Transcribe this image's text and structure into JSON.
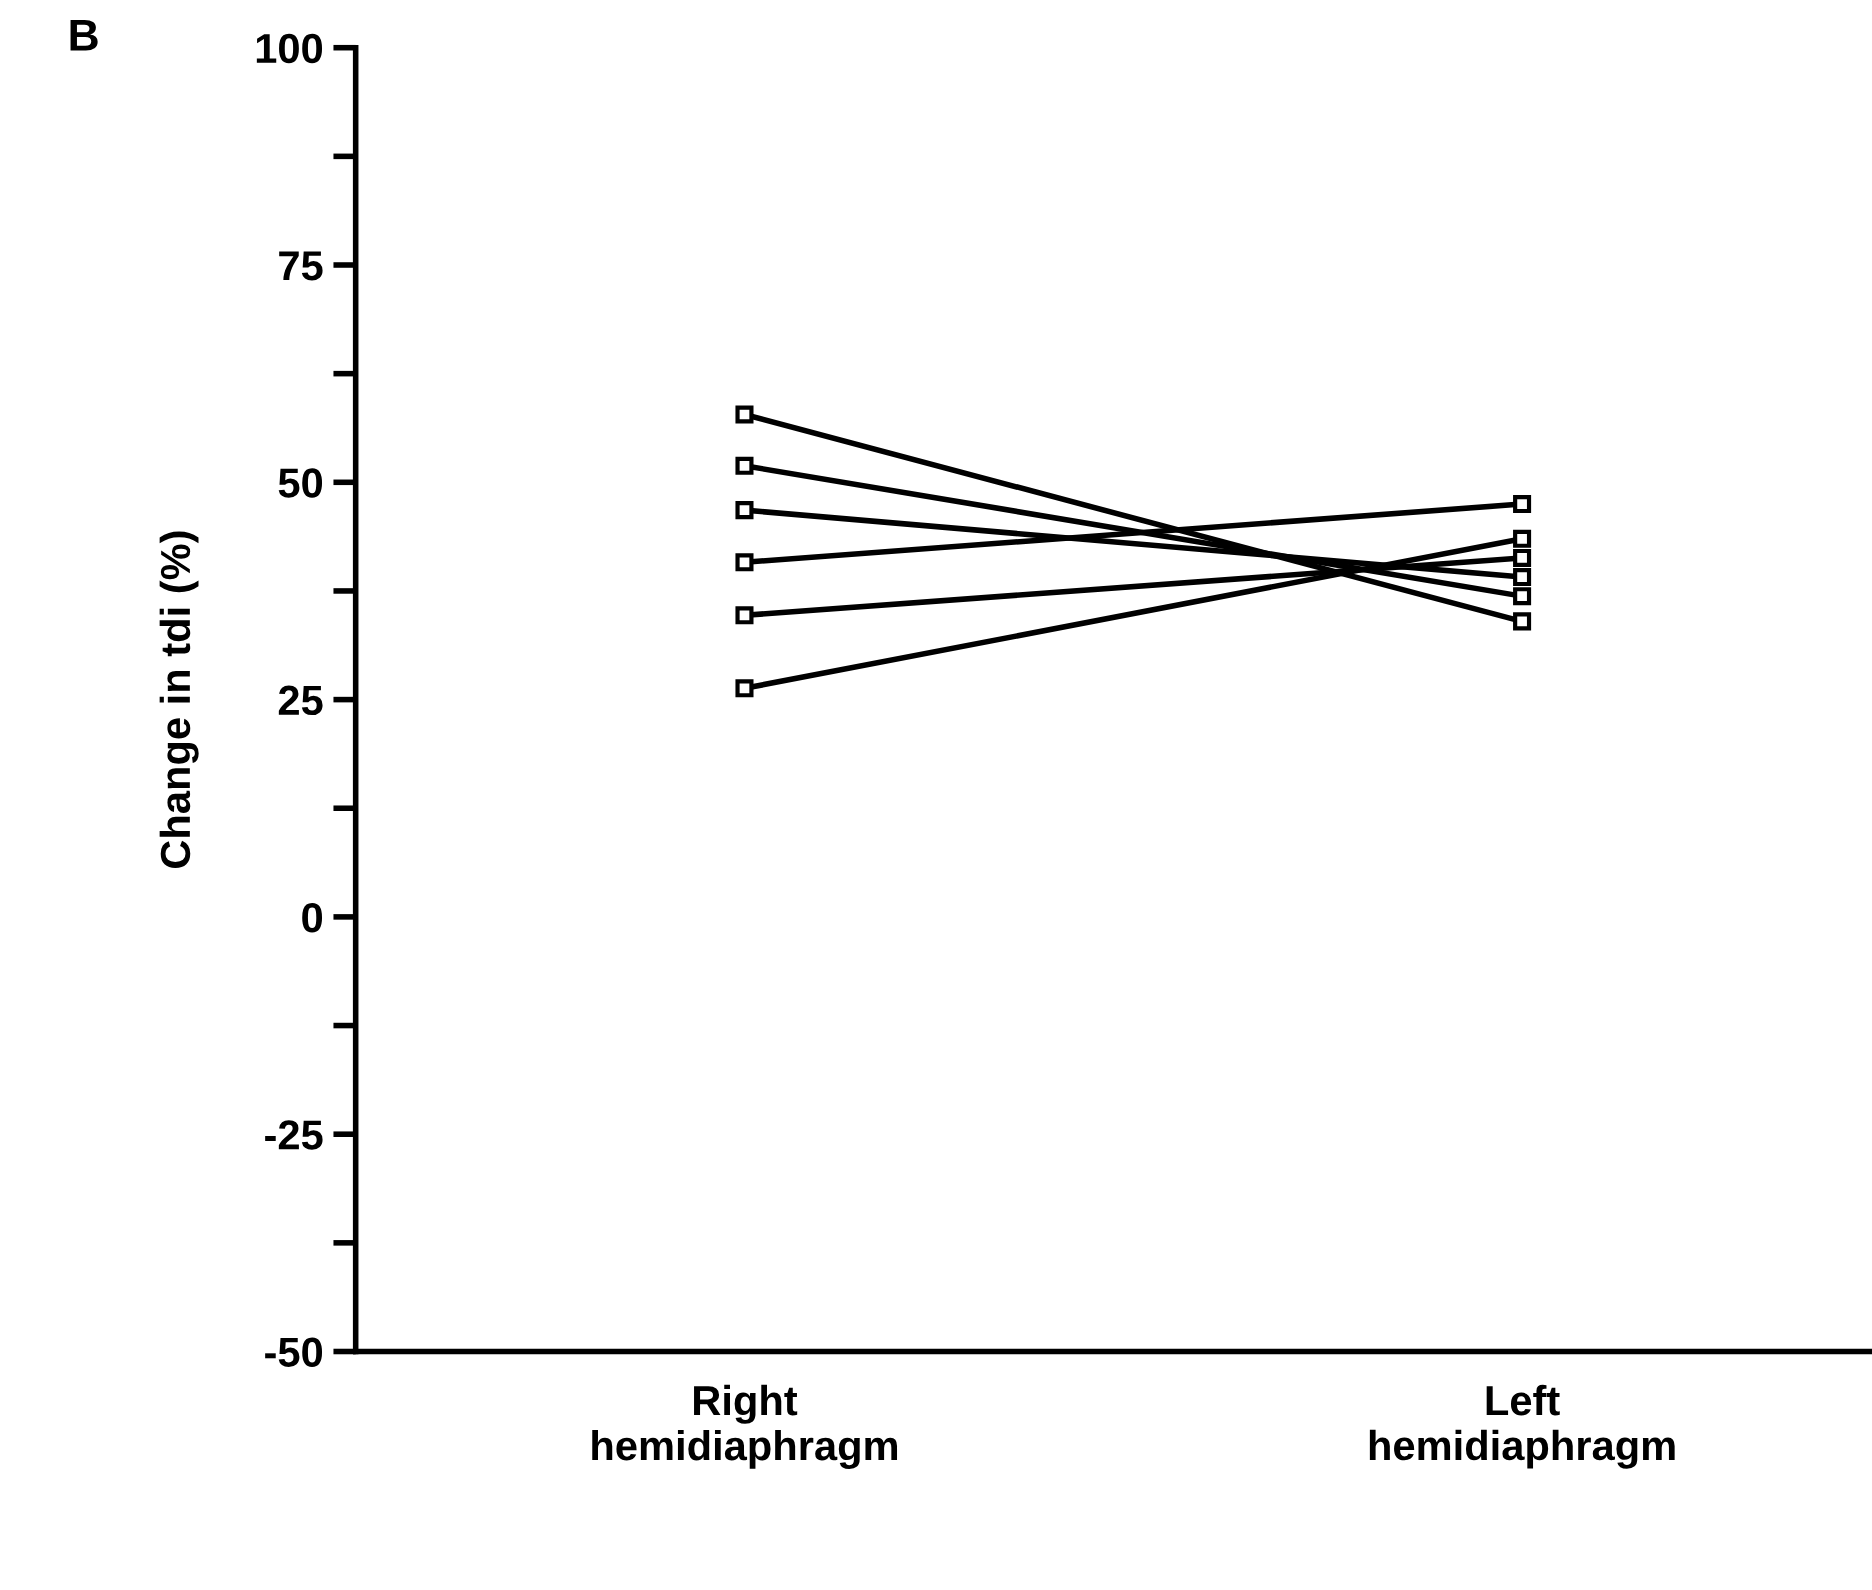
{
  "chart_data": {
    "type": "line",
    "title": "B",
    "ylabel": "Change in tdi (%)",
    "categories": [
      "Right\nhemidiaphragm",
      "Left\nhemidiaphragm"
    ],
    "series": [
      {
        "color": "#000000",
        "values": [
          57.8,
          34.0
        ]
      },
      {
        "color": "#000000",
        "values": [
          51.9,
          36.9
        ]
      },
      {
        "color": "#000000",
        "values": [
          46.8,
          39.1
        ]
      },
      {
        "color": "#000000",
        "values": [
          40.8,
          47.5
        ]
      },
      {
        "color": "#000000",
        "values": [
          34.7,
          41.3
        ]
      },
      {
        "color": "#000000",
        "values": [
          26.3,
          43.5
        ]
      }
    ],
    "ylim": [
      -50,
      100
    ],
    "yticks": [
      -50,
      {
        "value": -37.5,
        "label": null
      },
      -25,
      {
        "value": -12.5,
        "label": null
      },
      0,
      {
        "value": 12.5,
        "label": null
      },
      25,
      {
        "value": 37.5,
        "label": null
      },
      50,
      {
        "value": 62.5,
        "label": null
      },
      75,
      {
        "value": 87.5,
        "label": null
      },
      100
    ],
    "marker": "square",
    "line_style": "solid",
    "grid": false,
    "legend": false
  }
}
